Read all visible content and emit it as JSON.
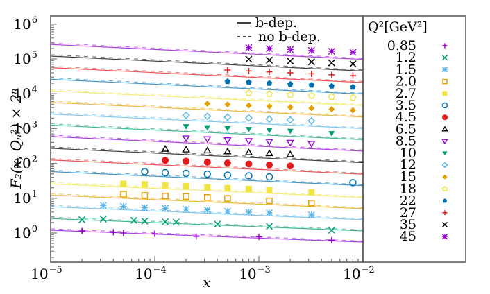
{
  "chart_data": {
    "type": "scatter",
    "title": "",
    "xlabel": "x",
    "ylabel": "F_2(x, Q_n^2) × 2^n",
    "xscale": "log",
    "yscale": "log",
    "xlim": [
      1e-05,
      0.01
    ],
    "ylim": [
      0.15,
      1600000.0
    ],
    "x_tick_labels": [
      "10^-5",
      "10^-4",
      "10^-3",
      "10^-2"
    ],
    "y_tick_labels": [
      "10^0",
      "10^1",
      "10^2",
      "10^3",
      "10^4",
      "10^5",
      "10^6"
    ],
    "grid": false,
    "line_legend": [
      {
        "style": "solid",
        "label": "b-dep."
      },
      {
        "style": "dashed",
        "label": "no b-dep."
      }
    ],
    "legend_title": "Q^2[GeV^2]",
    "legend_position": "right",
    "series": [
      {
        "name": "0.85",
        "color": "#9400d3",
        "marker": "plus",
        "curve": [
          1.2,
          0.55
        ],
        "points": [
          [
            2e-05,
            1.15
          ],
          [
            4e-05,
            1.05
          ],
          [
            5e-05,
            1.0
          ],
          [
            0.0001,
            0.95
          ],
          [
            0.00025,
            0.8
          ],
          [
            0.001,
            0.78
          ],
          [
            0.005,
            0.62
          ]
        ]
      },
      {
        "name": "1.2",
        "color": "#009e73",
        "marker": "x",
        "curve": [
          2.6,
          1.15
        ],
        "points": [
          [
            2e-05,
            2.4
          ],
          [
            3.2e-05,
            2.5
          ],
          [
            6.3e-05,
            2.3
          ],
          [
            8e-05,
            2.2
          ],
          [
            0.000126,
            2.1
          ],
          [
            0.00016,
            2.05
          ],
          [
            0.0004,
            1.8
          ],
          [
            0.00126,
            1.55
          ],
          [
            0.005,
            1.2
          ]
        ]
      },
      {
        "name": "1.5",
        "color": "#56b4e9",
        "marker": "asterisk",
        "curve": [
          5.7,
          2.4
        ],
        "points": [
          [
            3.2e-05,
            6.2
          ],
          [
            5e-05,
            5.8
          ],
          [
            8e-05,
            5.3
          ],
          [
            0.000126,
            5.1
          ],
          [
            0.0002,
            4.8
          ],
          [
            0.00032,
            4.6
          ],
          [
            0.0005,
            4.2
          ],
          [
            0.0008,
            4.0
          ],
          [
            0.00126,
            3.8
          ],
          [
            0.0032,
            3.3
          ]
        ]
      },
      {
        "name": "2.0",
        "color": "#e69f00",
        "marker": "square-open",
        "curve": [
          12.3,
          5.0
        ],
        "points": [
          [
            5e-05,
            13
          ],
          [
            8e-05,
            12
          ],
          [
            0.000126,
            11.5
          ],
          [
            0.0002,
            11.2
          ],
          [
            0.00032,
            10.5
          ],
          [
            0.0005,
            9.8
          ],
          [
            0.00126,
            8.4
          ],
          [
            0.0032,
            7.2
          ]
        ]
      },
      {
        "name": "2.7",
        "color": "#f0e442",
        "marker": "square-filled",
        "curve": [
          26,
          10.5
        ],
        "points": [
          [
            5e-05,
            26
          ],
          [
            8e-05,
            25
          ],
          [
            0.000126,
            23.5
          ],
          [
            0.0002,
            22
          ],
          [
            0.00032,
            20.5
          ],
          [
            0.0005,
            19.5
          ],
          [
            0.0008,
            18.5
          ],
          [
            0.00126,
            17.2
          ],
          [
            0.0032,
            15
          ]
        ]
      },
      {
        "name": "3.5",
        "color": "#0072b2",
        "marker": "circle-open",
        "curve": [
          58,
          23
        ],
        "points": [
          [
            8e-05,
            58
          ],
          [
            0.000126,
            54
          ],
          [
            0.0002,
            52
          ],
          [
            0.00032,
            49
          ],
          [
            0.0005,
            46
          ],
          [
            0.0008,
            44
          ],
          [
            0.00126,
            41
          ],
          [
            0.008,
            28
          ]
        ]
      },
      {
        "name": "4.5",
        "color": "#e41a1c",
        "marker": "circle-filled",
        "curve": [
          125,
          49
        ],
        "points": [
          [
            0.000126,
            122
          ],
          [
            0.0002,
            116
          ],
          [
            0.00032,
            108
          ],
          [
            0.0005,
            102
          ],
          [
            0.0008,
            96
          ],
          [
            0.00126,
            90
          ],
          [
            0.002,
            84
          ]
        ]
      },
      {
        "name": "6.5",
        "color": "#000000",
        "marker": "triangle-up-open",
        "curve": [
          270,
          105
        ],
        "points": [
          [
            0.000126,
            258
          ],
          [
            0.0002,
            247
          ],
          [
            0.00032,
            232
          ],
          [
            0.0005,
            218
          ],
          [
            0.0008,
            205
          ],
          [
            0.00126,
            193
          ],
          [
            0.002,
            180
          ]
        ]
      },
      {
        "name": "8.5",
        "color": "#9400d3",
        "marker": "triangle-down-open",
        "curve": [
          590,
          225
        ],
        "points": [
          [
            0.0002,
            530
          ],
          [
            0.00032,
            500
          ],
          [
            0.0005,
            470
          ],
          [
            0.0008,
            445
          ],
          [
            0.00126,
            420
          ],
          [
            0.002,
            395
          ],
          [
            0.0032,
            370
          ]
        ]
      },
      {
        "name": "10",
        "color": "#009e73",
        "marker": "triangle-down-filled",
        "curve": [
          1250,
          480
        ],
        "points": [
          [
            0.0002,
            1150
          ],
          [
            0.00032,
            1080
          ],
          [
            0.0005,
            1020
          ],
          [
            0.0008,
            960
          ],
          [
            0.00126,
            900
          ],
          [
            0.002,
            850
          ],
          [
            0.005,
            730
          ]
        ]
      },
      {
        "name": "12",
        "color": "#56b4e9",
        "marker": "diamond-open",
        "curve": [
          2600,
          1000
        ],
        "points": [
          [
            0.0002,
            2400
          ],
          [
            0.00032,
            2250
          ],
          [
            0.0005,
            2120
          ],
          [
            0.0008,
            2000
          ],
          [
            0.00126,
            1880
          ],
          [
            0.002,
            1780
          ],
          [
            0.0032,
            1660
          ]
        ]
      },
      {
        "name": "15",
        "color": "#e69f00",
        "marker": "diamond-filled",
        "curve": [
          5600,
          2150
        ],
        "points": [
          [
            0.00032,
            5200
          ],
          [
            0.0005,
            4900
          ],
          [
            0.0008,
            4600
          ],
          [
            0.00126,
            4350
          ],
          [
            0.002,
            4100
          ],
          [
            0.0032,
            3850
          ],
          [
            0.005,
            3600
          ],
          [
            0.008,
            3350
          ]
        ]
      },
      {
        "name": "18",
        "color": "#f0e442",
        "marker": "pentagon-open",
        "curve": [
          12000,
          4600
        ],
        "points": [
          [
            0.0008,
            10500
          ],
          [
            0.00126,
            9900
          ],
          [
            0.002,
            9300
          ],
          [
            0.0032,
            8800
          ],
          [
            0.005,
            8200
          ],
          [
            0.008,
            7700
          ]
        ]
      },
      {
        "name": "22",
        "color": "#0072b2",
        "marker": "pentagon-filled",
        "curve": [
          26000,
          9800
        ],
        "points": [
          [
            0.0005,
            22500
          ],
          [
            0.0008,
            21200
          ],
          [
            0.00126,
            20000
          ],
          [
            0.002,
            18800
          ],
          [
            0.0032,
            17700
          ],
          [
            0.005,
            16600
          ],
          [
            0.008,
            15500
          ]
        ]
      },
      {
        "name": "27",
        "color": "#e41a1c",
        "marker": "plus",
        "curve": [
          56000,
          21000
        ],
        "points": [
          [
            0.0005,
            48000
          ],
          [
            0.0008,
            45000
          ],
          [
            0.00126,
            42500
          ],
          [
            0.002,
            40000
          ],
          [
            0.0032,
            37500
          ],
          [
            0.005,
            35000
          ],
          [
            0.008,
            33000
          ]
        ]
      },
      {
        "name": "35",
        "color": "#000000",
        "marker": "x",
        "curve": [
          120000,
          45000
        ],
        "points": [
          [
            0.0008,
            98000
          ],
          [
            0.00126,
            92000
          ],
          [
            0.002,
            87000
          ],
          [
            0.0032,
            82000
          ],
          [
            0.005,
            77000
          ],
          [
            0.008,
            72000
          ]
        ]
      },
      {
        "name": "45",
        "color": "#9400d3",
        "marker": "asterisk",
        "curve": [
          260000,
          97000
        ],
        "points": [
          [
            0.0008,
            210000
          ],
          [
            0.00126,
            198000
          ],
          [
            0.002,
            186000
          ],
          [
            0.0032,
            175000
          ],
          [
            0.005,
            165000
          ],
          [
            0.008,
            155000
          ]
        ]
      }
    ]
  },
  "axes": {
    "x_title": "x",
    "y_title": "F₂(x, Qₙ²) × 2ⁿ"
  },
  "legend": {
    "solid_label": "b-dep.",
    "dashed_label": "no b-dep.",
    "title": "Q²[GeV²]"
  }
}
